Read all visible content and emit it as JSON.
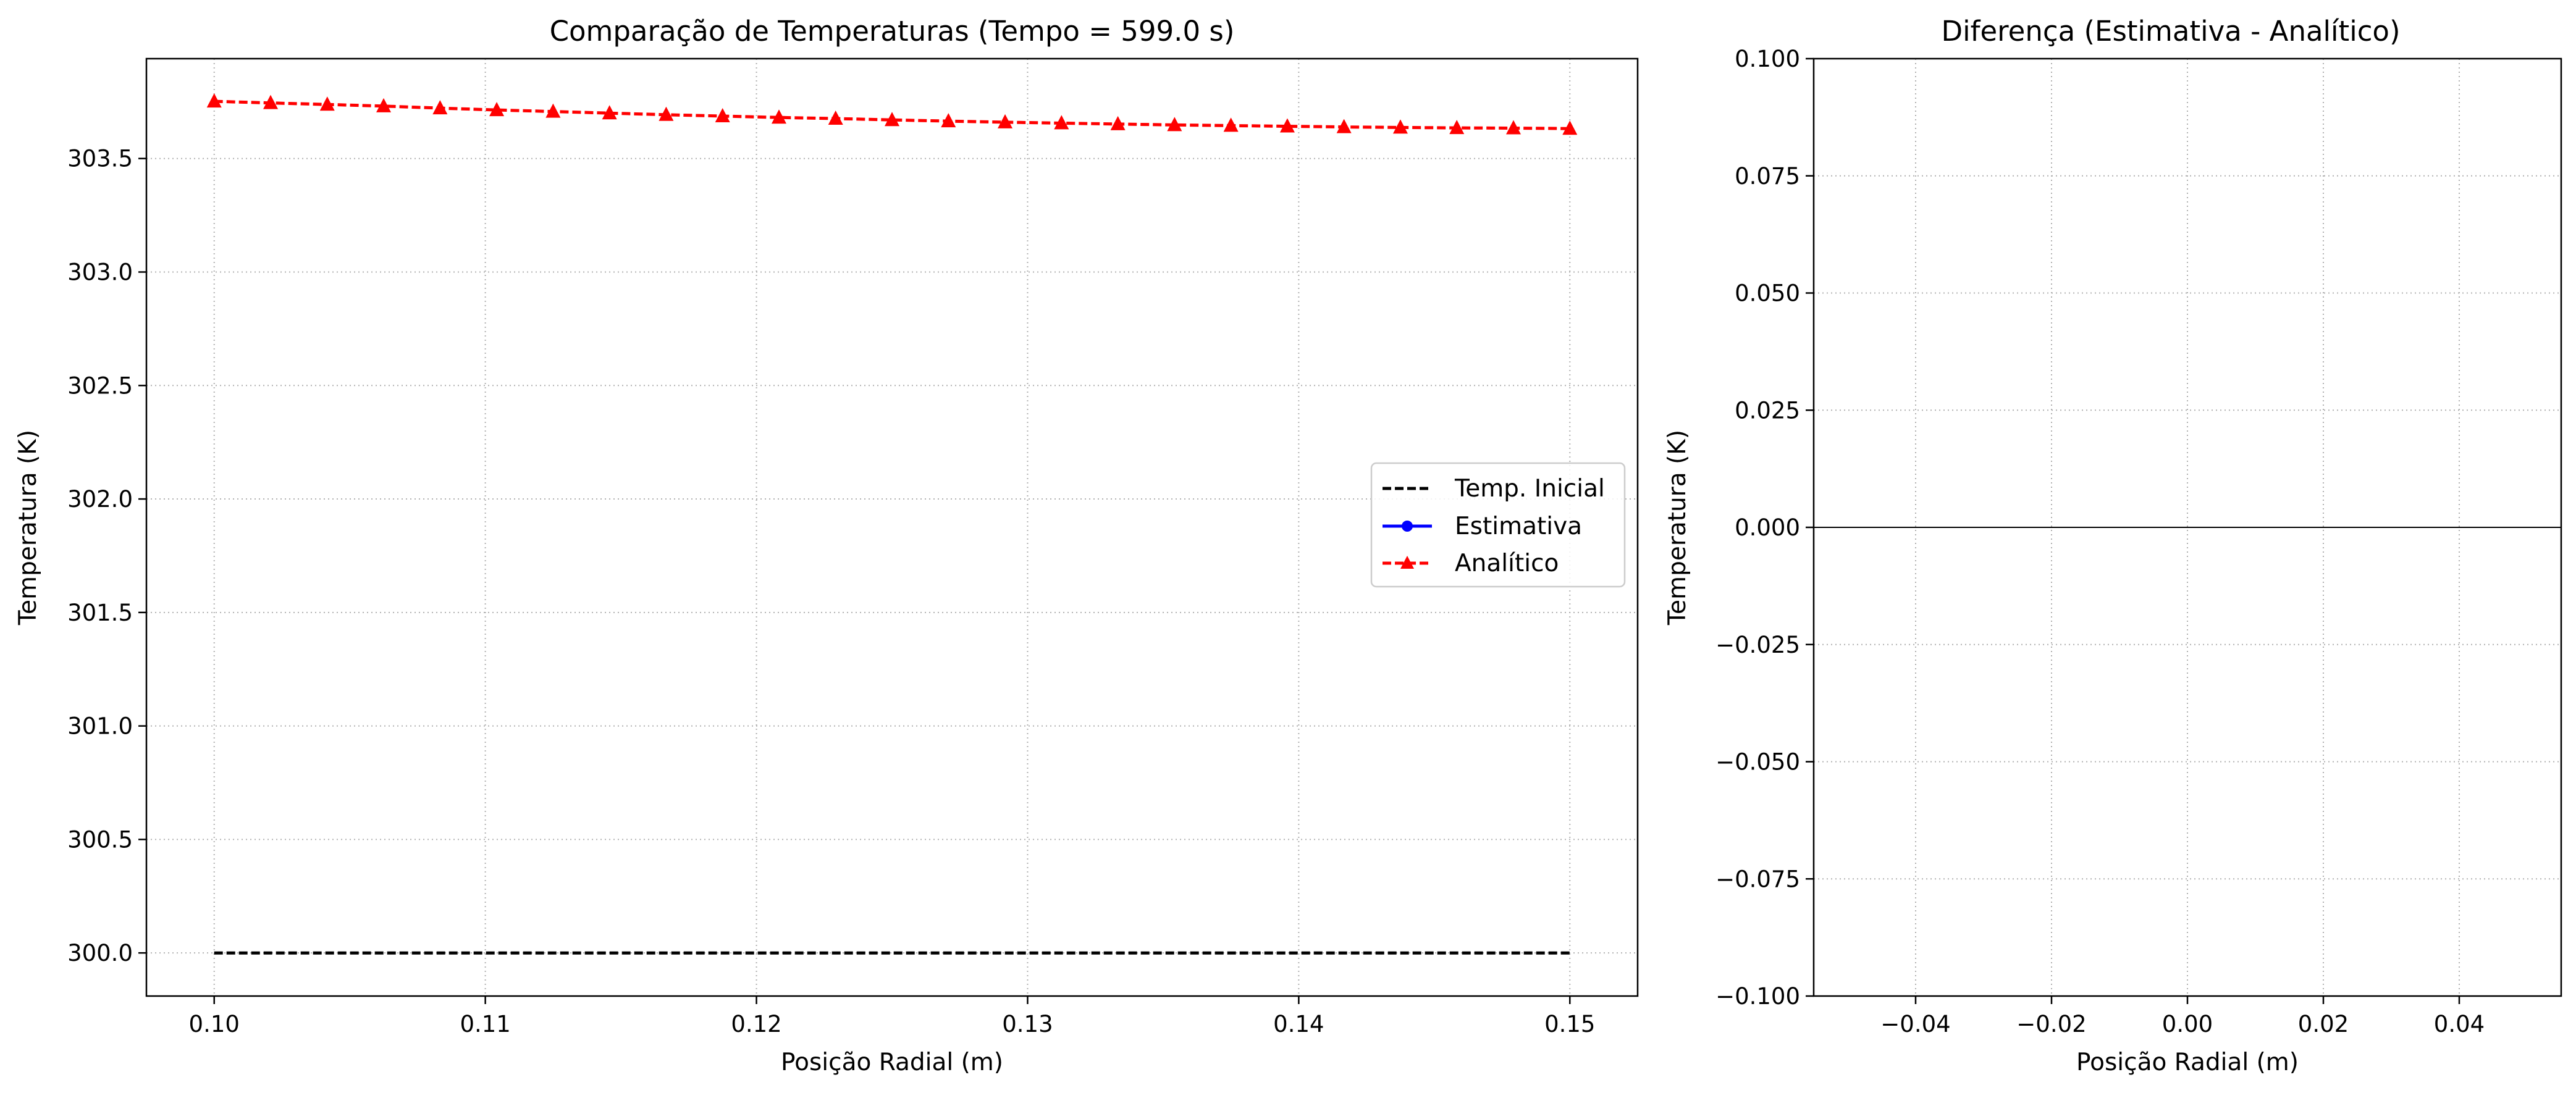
{
  "chart_data": [
    {
      "type": "line",
      "title": "Comparação de Temperaturas (Tempo = 599.0 s)",
      "xlabel": "Posição Radial (m)",
      "ylabel": "Temperatura (K)",
      "xlim": [
        0.0975,
        0.1525
      ],
      "ylim": [
        299.81,
        303.94
      ],
      "xticks": [
        0.1,
        0.11,
        0.12,
        0.13,
        0.14,
        0.15
      ],
      "xtick_labels": [
        "0.10",
        "0.11",
        "0.12",
        "0.13",
        "0.14",
        "0.15"
      ],
      "yticks": [
        300.0,
        300.5,
        301.0,
        301.5,
        302.0,
        302.5,
        303.0,
        303.5
      ],
      "ytick_labels": [
        "300.0",
        "300.5",
        "301.0",
        "301.5",
        "302.0",
        "302.5",
        "303.0",
        "303.5"
      ],
      "grid": true,
      "legend_position": "center-right",
      "series": [
        {
          "name": "Temp. Inicial",
          "color": "#000000",
          "line_style": "dashed",
          "marker": "none",
          "x": [
            0.1,
            0.15
          ],
          "y": [
            300.0,
            300.0
          ]
        },
        {
          "name": "Estimativa",
          "color": "#0000ff",
          "line_style": "solid",
          "marker": "circle",
          "x": [],
          "y": []
        },
        {
          "name": "Analítico",
          "color": "#ff0000",
          "line_style": "dashed",
          "marker": "triangle",
          "x": [
            0.1,
            0.10208,
            0.10417,
            0.10625,
            0.10833,
            0.11042,
            0.1125,
            0.11458,
            0.11667,
            0.11875,
            0.12083,
            0.12292,
            0.125,
            0.12708,
            0.12917,
            0.13125,
            0.13333,
            0.13542,
            0.1375,
            0.13958,
            0.14167,
            0.14375,
            0.14583,
            0.14792,
            0.15
          ],
          "y": [
            303.752,
            303.745,
            303.738,
            303.731,
            303.722,
            303.714,
            303.707,
            303.7,
            303.693,
            303.687,
            303.681,
            303.676,
            303.67,
            303.665,
            303.66,
            303.656,
            303.652,
            303.648,
            303.645,
            303.642,
            303.639,
            303.637,
            303.635,
            303.634,
            303.632
          ]
        }
      ]
    },
    {
      "type": "line",
      "title": "Diferença (Estimativa - Analítico)",
      "xlabel": "Posição Radial (m)",
      "ylabel": "Temperatura (K)",
      "xlim": [
        -0.055,
        0.055
      ],
      "ylim": [
        -0.1,
        0.1
      ],
      "xticks": [
        -0.04,
        -0.02,
        0.0,
        0.02,
        0.04
      ],
      "xtick_labels": [
        "−0.04",
        "−0.02",
        "0.00",
        "0.02",
        "0.04"
      ],
      "yticks": [
        -0.1,
        -0.075,
        -0.05,
        -0.025,
        0.0,
        0.025,
        0.05,
        0.075,
        0.1
      ],
      "ytick_labels": [
        "−0.100",
        "−0.075",
        "−0.050",
        "−0.025",
        "0.000",
        "0.025",
        "0.050",
        "0.075",
        "0.100"
      ],
      "grid": true,
      "reference_line": 0.0,
      "reference_line_color": "#000000",
      "series": [
        {
          "x": [],
          "y": []
        }
      ]
    }
  ]
}
